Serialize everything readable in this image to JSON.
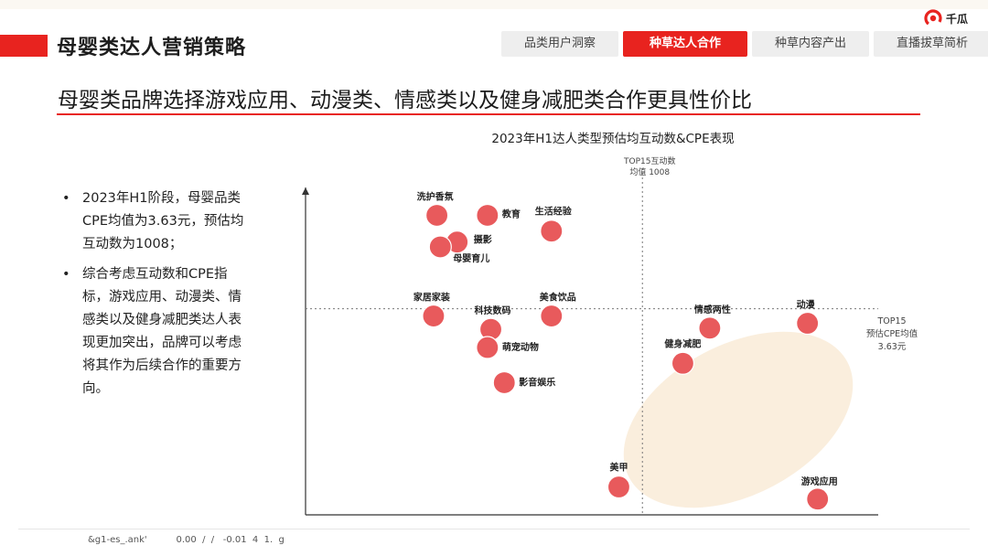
{
  "header": {
    "title": "母婴类达人营销策略",
    "logo_text": "千瓜",
    "tabs": [
      {
        "label": "品类用户洞察",
        "active": false
      },
      {
        "label": "种草达人合作",
        "active": true
      },
      {
        "label": "种草内容产出",
        "active": false
      },
      {
        "label": "直播拔草简析",
        "active": false
      }
    ]
  },
  "subtitle": "母婴类品牌选择游戏应用、动漫类、情感类以及健身减肥类合作更具性价比",
  "bullets": [
    "2023年H1阶段，母婴品类CPE均值为3.63元，预估均互动数为1008；",
    "综合考虑互动数和CPE指标，游戏应用、动漫类、情感类以及健身减肥类达人表现更加突出，品牌可以考虑将其作为后续合作的重要方向。"
  ],
  "footer": {
    "text": "&g1-es_.ank'          0.00  /  /   -0.01  4  1.  g"
  },
  "colors": {
    "accent": "#e8231f",
    "dot": "#e85a5c",
    "highlight": "#faeedd"
  },
  "chart_data": {
    "type": "scatter",
    "title": "2023年H1达人类型预估均互动数&CPE表现",
    "xlabel": "",
    "ylabel": "",
    "reference_lines": {
      "vertical": {
        "label_line1": "TOP15互动数",
        "label_line2": "均值 1008",
        "value": 1008
      },
      "horizontal": {
        "label_line1": "TOP15",
        "label_line2": "预估CPE均值",
        "label_line3": "3.63元",
        "value": 3.63
      }
    },
    "points": [
      {
        "label": "洗护香氛",
        "x": 0.39,
        "y": 0.23
      },
      {
        "label": "教育",
        "x": 0.54,
        "y": 0.23
      },
      {
        "label": "生活经验",
        "x": 0.73,
        "y": 0.36
      },
      {
        "label": "摄影",
        "x": 0.45,
        "y": 0.45
      },
      {
        "label": "母婴育儿",
        "x": 0.4,
        "y": 0.49
      },
      {
        "label": "家居家装",
        "x": 0.38,
        "y": 1.06
      },
      {
        "label": "科技数码",
        "x": 0.55,
        "y": 1.17
      },
      {
        "label": "美食饮品",
        "x": 0.73,
        "y": 1.06
      },
      {
        "label": "萌宠动物",
        "x": 0.54,
        "y": 1.32
      },
      {
        "label": "影音娱乐",
        "x": 0.59,
        "y": 1.61
      },
      {
        "label": "情感两性",
        "x": 1.2,
        "y": 1.16
      },
      {
        "label": "动漫",
        "x": 1.49,
        "y": 1.12
      },
      {
        "label": "健身减肥",
        "x": 1.12,
        "y": 1.45
      },
      {
        "label": "美甲",
        "x": 0.93,
        "y": 2.47
      },
      {
        "label": "游戏应用",
        "x": 1.52,
        "y": 2.57
      }
    ]
  }
}
